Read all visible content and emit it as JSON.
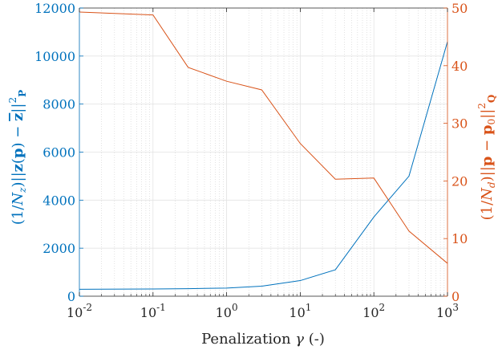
{
  "chart_data": {
    "type": "line",
    "title": "",
    "x_scale": "log",
    "xlim": [
      0.01,
      1000
    ],
    "xlabel": "Penalization γ (-)",
    "x_ticks": [
      {
        "base": "10",
        "exp": "-2"
      },
      {
        "base": "10",
        "exp": "-1"
      },
      {
        "base": "10",
        "exp": "0"
      },
      {
        "base": "10",
        "exp": "1"
      },
      {
        "base": "10",
        "exp": "2"
      },
      {
        "base": "10",
        "exp": "3"
      }
    ],
    "grid": "on (major and minor)",
    "y_left": {
      "label": "(1/N_z)||z(p) − z̄||²_P",
      "ylim": [
        0,
        12000
      ],
      "ticks": [
        "0",
        "2000",
        "4000",
        "6000",
        "8000",
        "10000",
        "12000"
      ],
      "color": "#0072BD"
    },
    "y_right": {
      "label": "(1/N_d)||p − p0||²_Q",
      "ylim": [
        0,
        50
      ],
      "ticks": [
        "0",
        "10",
        "20",
        "30",
        "40",
        "50"
      ],
      "color": "#D95319"
    },
    "x": [
      0.01,
      0.1,
      0.3,
      1,
      3,
      10,
      30,
      100,
      300,
      1000
    ],
    "series": [
      {
        "axis": "left",
        "color": "#0072BD",
        "values": [
          290,
          300,
          315,
          340,
          420,
          650,
          1100,
          3300,
          5000,
          10600
        ]
      },
      {
        "axis": "right",
        "color": "#D95319",
        "values": [
          49.3,
          48.8,
          39.7,
          37.3,
          35.8,
          26.5,
          20.3,
          20.5,
          11.3,
          5.7
        ]
      }
    ]
  }
}
